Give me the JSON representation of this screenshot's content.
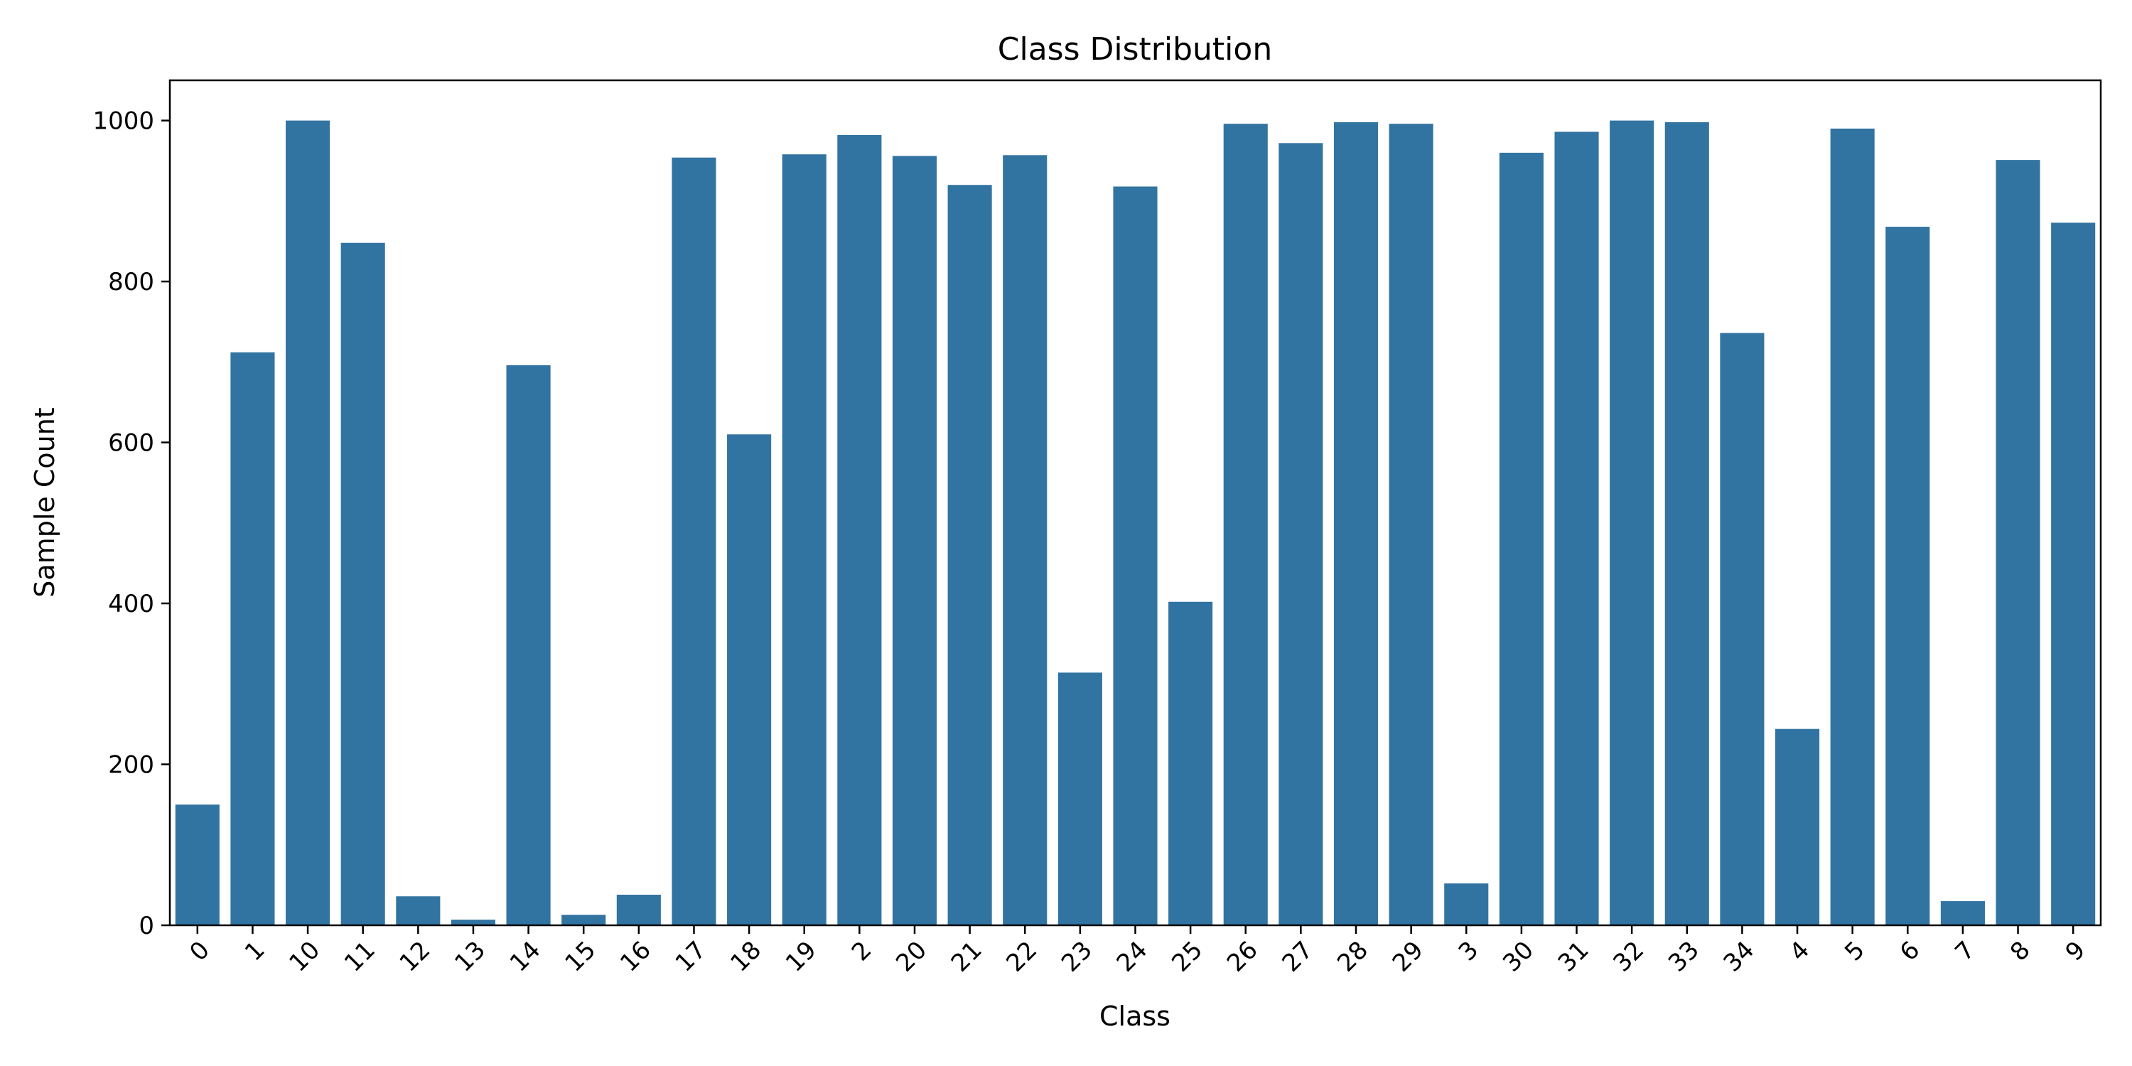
{
  "chart_data": {
    "type": "bar",
    "title": "Class Distribution",
    "xlabel": "Class",
    "ylabel": "Sample Count",
    "categories": [
      "0",
      "1",
      "10",
      "11",
      "12",
      "13",
      "14",
      "15",
      "16",
      "17",
      "18",
      "19",
      "2",
      "20",
      "21",
      "22",
      "23",
      "24",
      "25",
      "26",
      "27",
      "28",
      "29",
      "3",
      "30",
      "31",
      "32",
      "33",
      "34",
      "4",
      "5",
      "6",
      "7",
      "8",
      "9"
    ],
    "values": [
      150,
      712,
      1000,
      848,
      36,
      7,
      696,
      13,
      38,
      954,
      610,
      958,
      982,
      956,
      920,
      957,
      314,
      918,
      402,
      996,
      972,
      998,
      996,
      52,
      960,
      986,
      1000,
      998,
      736,
      244,
      990,
      868,
      30,
      951,
      873
    ],
    "ylim": [
      0,
      1050
    ],
    "yticks": [
      0,
      200,
      400,
      600,
      800,
      1000
    ],
    "bar_color": "#3274a1",
    "grid": false,
    "legend": "none"
  }
}
